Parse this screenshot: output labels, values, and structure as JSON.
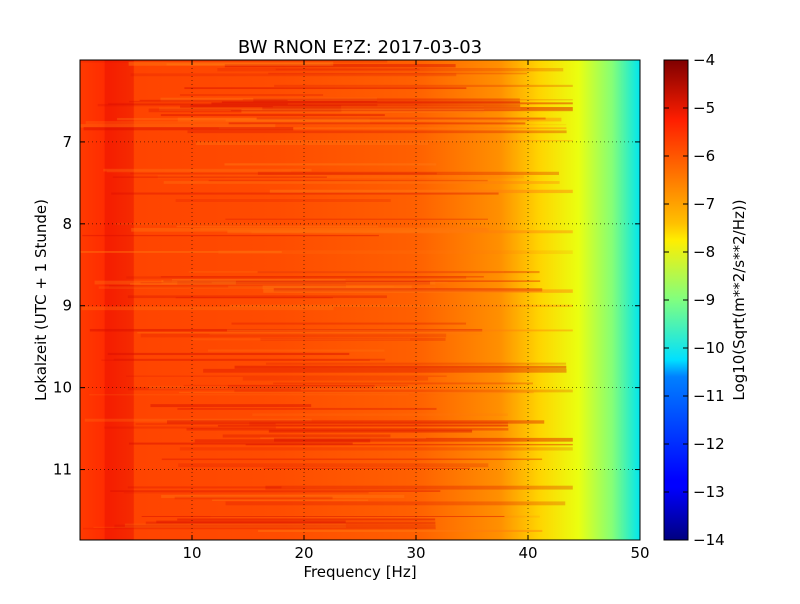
{
  "chart_data": {
    "type": "heatmap",
    "title": "BW RNON E?Z: 2017-03-03",
    "xlabel": "Frequency [Hz]",
    "ylabel": "Lokalzeit (UTC + 1 Stunde)",
    "xlim": [
      0,
      50
    ],
    "ylim": [
      11.86,
      6.0
    ],
    "x_ticks": [
      10,
      20,
      30,
      40,
      50
    ],
    "y_ticks": [
      7,
      8,
      9,
      10,
      11
    ],
    "grid": true,
    "colormap": "jet",
    "colorbar": {
      "label": "Log10(Sqrt(m**2/s**2/Hz))",
      "range": [
        -14,
        -4
      ],
      "ticks": [
        -4,
        -5,
        -6,
        -7,
        -8,
        -9,
        -10,
        -11,
        -12,
        -13,
        -14
      ]
    }
  }
}
